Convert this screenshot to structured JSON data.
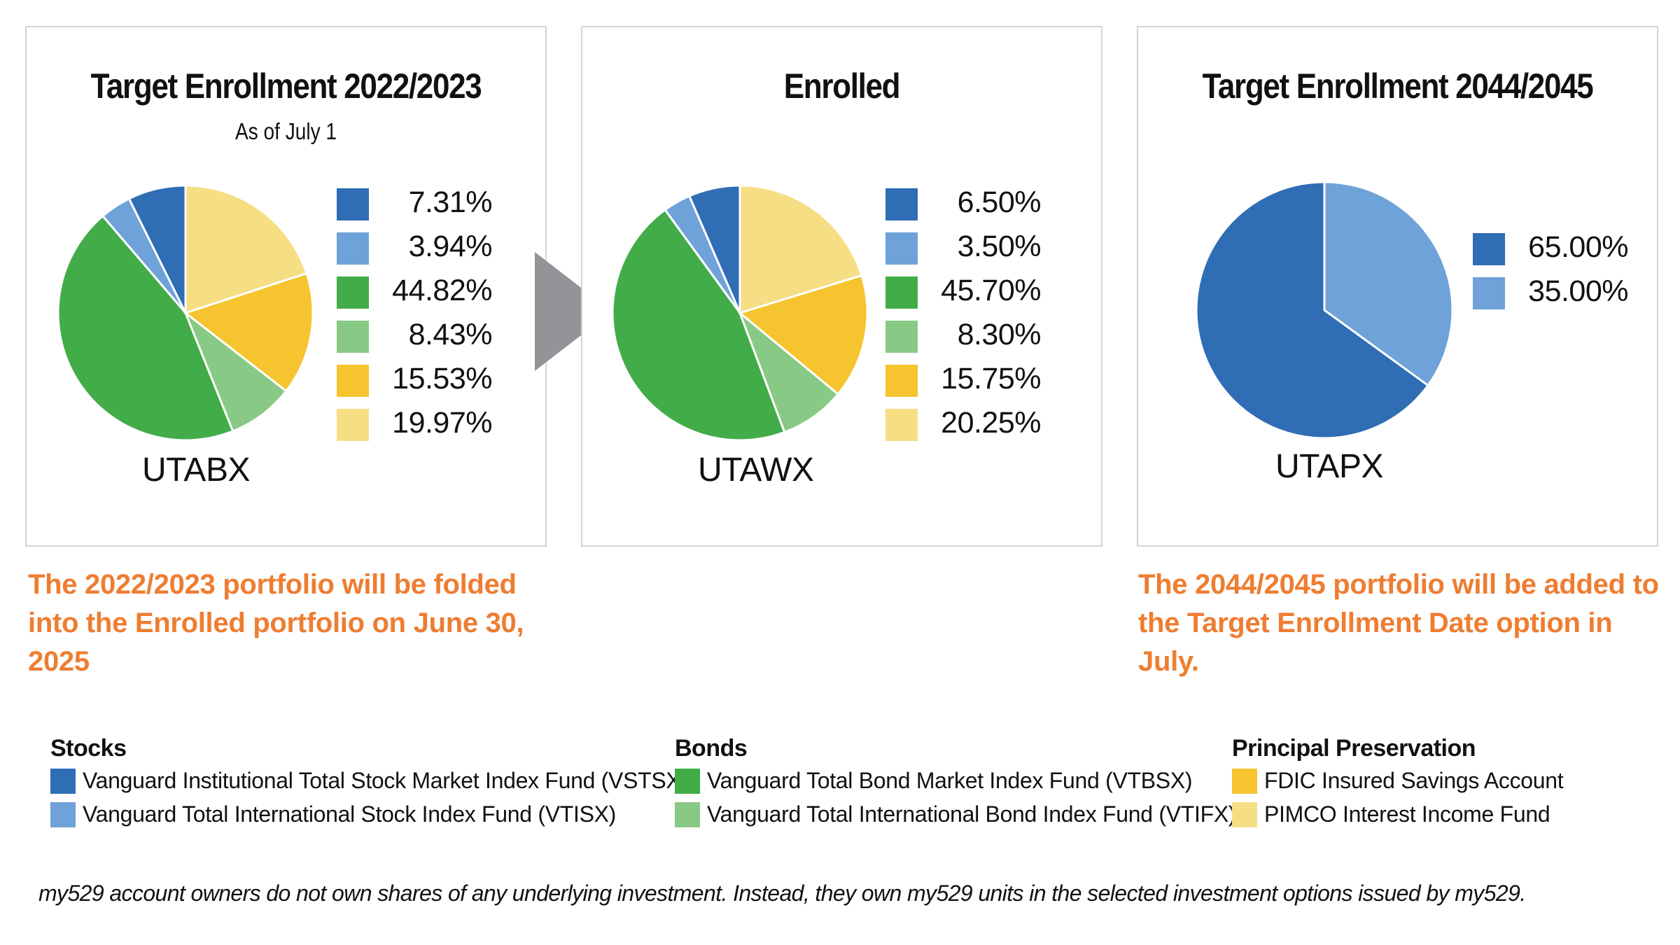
{
  "colors": {
    "vstsx": "#2f6db5",
    "vtisx": "#6fa2d8",
    "vtbsx": "#42ac49",
    "vtifx": "#88c985",
    "fdic": "#f5c42f",
    "pimco": "#f6de85",
    "arrow": "#929497",
    "note": "#ee7d31",
    "border": "#d4d4d4"
  },
  "chart_data": [
    {
      "type": "pie",
      "title": "Target Enrollment 2022/2023",
      "subtitle": "As of July 1",
      "fund_code": "UTABX",
      "categories": [
        "Vanguard Institutional Total Stock Market Index Fund (VSTSX)",
        "Vanguard Total International Stock Index Fund (VTISX)",
        "Vanguard Total Bond Market Index Fund (VTBSX)",
        "Vanguard Total International Bond Index Fund (VTIFX)",
        "FDIC Insured Savings Account",
        "PIMCO Interest Income Fund"
      ],
      "values": [
        7.31,
        3.94,
        44.82,
        8.43,
        15.53,
        19.97
      ],
      "labels": [
        "7.31%",
        "3.94%",
        "44.82%",
        "8.43%",
        "15.53%",
        "19.97%"
      ],
      "legend_position": "right"
    },
    {
      "type": "pie",
      "title": "Enrolled",
      "fund_code": "UTAWX",
      "categories": [
        "Vanguard Institutional Total Stock Market Index Fund (VSTSX)",
        "Vanguard Total International Stock Index Fund (VTISX)",
        "Vanguard Total Bond Market Index Fund (VTBSX)",
        "Vanguard Total International Bond Index Fund (VTIFX)",
        "FDIC Insured Savings Account",
        "PIMCO Interest Income Fund"
      ],
      "values": [
        6.5,
        3.5,
        45.7,
        8.3,
        15.75,
        20.25
      ],
      "labels": [
        "6.50%",
        "3.50%",
        "45.70%",
        "8.30%",
        "15.75%",
        "20.25%"
      ],
      "legend_position": "right"
    },
    {
      "type": "pie",
      "title": "Target Enrollment 2044/2045",
      "fund_code": "UTAPX",
      "categories": [
        "Vanguard Institutional Total Stock Market Index Fund (VSTSX)",
        "Vanguard Total International Stock Index Fund (VTISX)"
      ],
      "values": [
        65.0,
        35.0
      ],
      "labels": [
        "65.00%",
        "35.00%"
      ],
      "legend_position": "right"
    }
  ],
  "notes": [
    "The 2022/2023 portfolio will be folded into the Enrolled portfolio on June 30, 2025",
    "The 2044/2045 portfolio will be added to the Target Enrollment Date option in July."
  ],
  "legend_groups": [
    {
      "title": "Stocks",
      "items": [
        {
          "label": "Vanguard Institutional Total Stock Market Index Fund (VSTSX)",
          "color": "#2f6db5"
        },
        {
          "label": "Vanguard Total International Stock Index Fund (VTISX)",
          "color": "#6fa2d8"
        }
      ]
    },
    {
      "title": "Bonds",
      "items": [
        {
          "label": "Vanguard Total Bond Market Index Fund (VTBSX)",
          "color": "#42ac49"
        },
        {
          "label": "Vanguard Total International Bond Index Fund (VTIFX)",
          "color": "#88c985"
        }
      ]
    },
    {
      "title": "Principal Preservation",
      "items": [
        {
          "label": "FDIC Insured Savings Account",
          "color": "#f5c42f"
        },
        {
          "label": "PIMCO Interest Income Fund",
          "color": "#f6de85"
        }
      ]
    }
  ],
  "footnote": "my529 account owners do not own shares of any underlying investment. Instead, they own my529 units in the selected investment options issued by my529."
}
